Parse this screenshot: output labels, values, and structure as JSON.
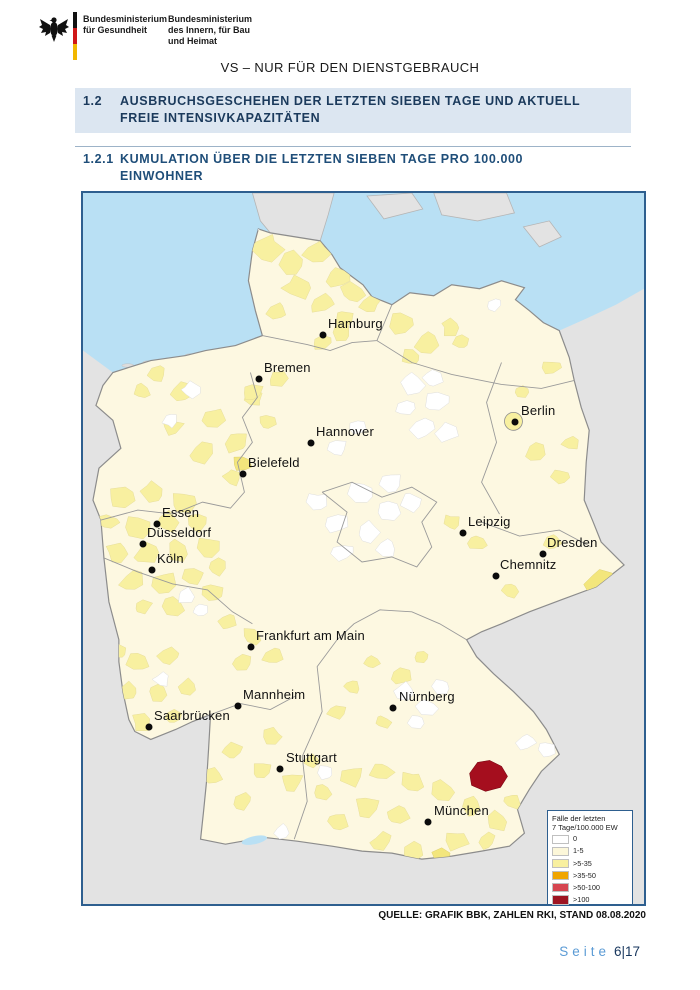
{
  "header": {
    "ministry1": {
      "line1": "Bundesministerium",
      "line2": "für Gesundheit"
    },
    "ministry2": {
      "line1": "Bundesministerium",
      "line2": "des Innern, für Bau",
      "line3": "und Heimat"
    },
    "classification": "VS – NUR FÜR DEN DIENSTGEBRAUCH"
  },
  "sections": {
    "s12": {
      "number": "1.2",
      "title": "AUSBRUCHSGESCHEHEN DER LETZTEN SIEBEN TAGE UND AKTUELL FREIE INTENSIVKAPAZITÄTEN"
    },
    "s121": {
      "number": "1.2.1",
      "title": "KUMULATION ÜBER DIE LETZTEN SIEBEN TAGE PRO 100.000 EINWOHNER"
    }
  },
  "map": {
    "cities": [
      {
        "name": "Hamburg",
        "dot": [
          240,
          142
        ],
        "label": [
          245,
          123
        ]
      },
      {
        "name": "Bremen",
        "dot": [
          176,
          186
        ],
        "label": [
          181,
          167
        ]
      },
      {
        "name": "Berlin",
        "dot": [
          432,
          229
        ],
        "label": [
          438,
          210
        ]
      },
      {
        "name": "Hannover",
        "dot": [
          228,
          250
        ],
        "label": [
          233,
          231
        ]
      },
      {
        "name": "Bielefeld",
        "dot": [
          160,
          281
        ],
        "label": [
          165,
          262
        ]
      },
      {
        "name": "Essen",
        "dot": [
          74,
          331
        ],
        "label": [
          79,
          312
        ]
      },
      {
        "name": "Düsseldorf",
        "dot": [
          60,
          351
        ],
        "label": [
          64,
          332
        ]
      },
      {
        "name": "Köln",
        "dot": [
          69,
          377
        ],
        "label": [
          74,
          358
        ]
      },
      {
        "name": "Leipzig",
        "dot": [
          380,
          340
        ],
        "label": [
          385,
          321
        ]
      },
      {
        "name": "Dresden",
        "dot": [
          460,
          361
        ],
        "label": [
          464,
          342
        ]
      },
      {
        "name": "Chemnitz",
        "dot": [
          413,
          383
        ],
        "label": [
          417,
          364
        ]
      },
      {
        "name": "Frankfurt am Main",
        "dot": [
          168,
          454
        ],
        "label": [
          173,
          435
        ]
      },
      {
        "name": "Mannheim",
        "dot": [
          155,
          513
        ],
        "label": [
          160,
          494
        ]
      },
      {
        "name": "Nürnberg",
        "dot": [
          310,
          515
        ],
        "label": [
          316,
          496
        ]
      },
      {
        "name": "Saarbrücken",
        "dot": [
          66,
          534
        ],
        "label": [
          71,
          515
        ]
      },
      {
        "name": "Stuttgart",
        "dot": [
          197,
          576
        ],
        "label": [
          203,
          557
        ]
      },
      {
        "name": "München",
        "dot": [
          345,
          629
        ],
        "label": [
          351,
          610
        ]
      }
    ],
    "legend": {
      "title_line1": "Fälle der letzten",
      "title_line2": "7 Tage/100.000 EW",
      "items": [
        {
          "label": "0",
          "color": "#ffffff"
        },
        {
          "label": "1-5",
          "color": "#fcf7d9"
        },
        {
          "label": ">5-35",
          "color": "#f8f0a0"
        },
        {
          "label": ">35-50",
          "color": "#f0a500"
        },
        {
          "label": ">50-100",
          "color": "#d64550"
        },
        {
          "label": ">100",
          "color": "#9e1421"
        }
      ]
    },
    "hotspot_color": "#a50e1e",
    "colors": {
      "water": "#b9e0f4",
      "foreign_land": "#e3e3e3",
      "cat_0": "#ffffff",
      "cat_1_5": "#fdf8e1",
      "cat_5_35": "#f8f0a0",
      "cat_35_50": "#f0a500",
      "cat_50_100": "#d64550",
      "cat_100": "#9e1421"
    }
  },
  "source": "QUELLE: GRAFIK BBK, ZAHLEN RKI, STAND 08.08.2020",
  "footer": {
    "label": "Seite",
    "page": "6|17"
  }
}
